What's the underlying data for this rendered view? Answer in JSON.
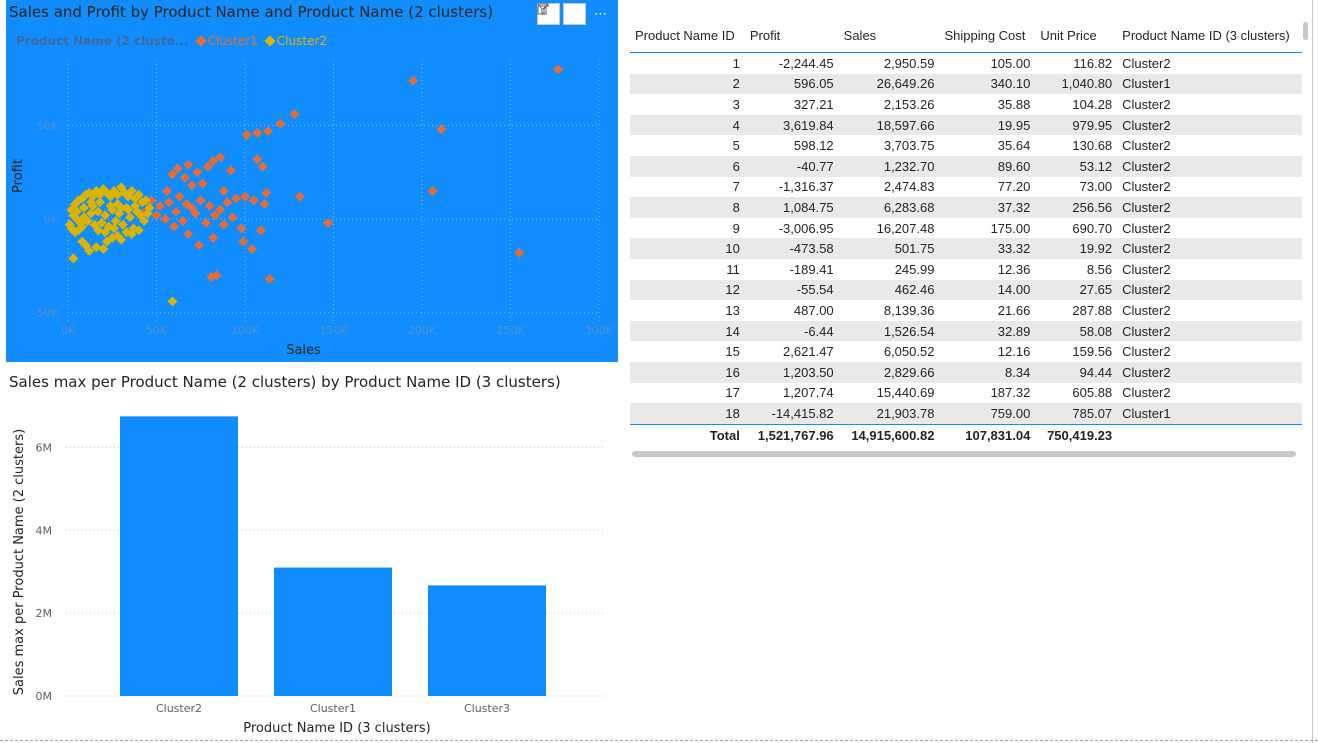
{
  "scatter": {
    "title": "Sales and Profit by Product Name and Product Name (2 clusters)",
    "legend_title": "Product Name (2 cluste...",
    "legend": [
      {
        "name": "Cluster1",
        "color": "#E66C37"
      },
      {
        "name": "Cluster2",
        "color": "#D9B300"
      }
    ],
    "background": "#118DFF",
    "icons": [
      "filter-icon",
      "focus-mode-icon",
      "more-options-icon"
    ]
  },
  "bar": {
    "title": "Sales max per Product Name (2 clusters) by Product Name ID (3 clusters)",
    "bar_color": "#118DFF"
  },
  "chart_data": [
    {
      "type": "scatter",
      "xlabel": "Sales",
      "ylabel": "Profit",
      "xlim": [
        0,
        300000
      ],
      "ylim": [
        -55000,
        85000
      ],
      "xticks": [
        0,
        50000,
        100000,
        150000,
        200000,
        250000,
        300000
      ],
      "xtick_labels": [
        "0K",
        "50K",
        "100K",
        "150K",
        "200K",
        "250K",
        "300K"
      ],
      "yticks": [
        -50000,
        0,
        50000
      ],
      "ytick_labels": [
        "-50K",
        "0K",
        "50K"
      ],
      "grid": true,
      "legend_position": "top-left",
      "series": [
        {
          "name": "Cluster1",
          "color": "#E66C37",
          "points": [
            [
              277000,
              80000
            ],
            [
              195000,
              74000
            ],
            [
              211000,
              48000
            ],
            [
              128000,
              56000
            ],
            [
              120000,
              51000
            ],
            [
              107000,
              46000
            ],
            [
              113000,
              47000
            ],
            [
              101000,
              45000
            ],
            [
              107000,
              32000
            ],
            [
              110000,
              28000
            ],
            [
              86000,
              33000
            ],
            [
              82000,
              31000
            ],
            [
              92000,
              26000
            ],
            [
              79000,
              28000
            ],
            [
              68000,
              29000
            ],
            [
              73000,
              25000
            ],
            [
              62000,
              27000
            ],
            [
              59000,
              24000
            ],
            [
              66000,
              22000
            ],
            [
              70000,
              18000
            ],
            [
              76000,
              19000
            ],
            [
              88000,
              15000
            ],
            [
              100000,
              12000
            ],
            [
              112000,
              14000
            ],
            [
              131000,
              12000
            ],
            [
              206000,
              15000
            ],
            [
              56000,
              15000
            ],
            [
              63000,
              12000
            ],
            [
              67000,
              8000
            ],
            [
              75000,
              10000
            ],
            [
              80000,
              7000
            ],
            [
              90000,
              9000
            ],
            [
              95000,
              11000
            ],
            [
              105000,
              10000
            ],
            [
              111000,
              8000
            ],
            [
              47000,
              10000
            ],
            [
              52000,
              7000
            ],
            [
              57000,
              9000
            ],
            [
              45000,
              5000
            ],
            [
              61000,
              4000
            ],
            [
              72000,
              3000
            ],
            [
              83000,
              2000
            ],
            [
              93000,
              1000
            ],
            [
              55000,
              0
            ],
            [
              65000,
              -1000
            ],
            [
              78000,
              -2000
            ],
            [
              88000,
              -3000
            ],
            [
              98000,
              -5000
            ],
            [
              109000,
              -6000
            ],
            [
              147000,
              -2000
            ],
            [
              68000,
              -8000
            ],
            [
              82000,
              -10000
            ],
            [
              99000,
              -12000
            ],
            [
              74000,
              -14000
            ],
            [
              104000,
              -16000
            ],
            [
              255000,
              -18000
            ],
            [
              84000,
              -30000
            ],
            [
              81000,
              -31000
            ],
            [
              114000,
              -32000
            ],
            [
              50000,
              2000
            ],
            [
              42000,
              3000
            ],
            [
              60000,
              -4000
            ],
            [
              70000,
              6000
            ],
            [
              86000,
              5000
            ]
          ]
        },
        {
          "name": "Cluster2",
          "color": "#D9B300",
          "points": [
            [
              59000,
              -44000
            ],
            [
              3000,
              -21000
            ],
            [
              8000,
              -12000
            ],
            [
              10000,
              -14000
            ],
            [
              12000,
              -17000
            ],
            [
              16000,
              -15000
            ],
            [
              20000,
              -16000
            ],
            [
              22000,
              -12000
            ],
            [
              25000,
              -10000
            ],
            [
              28000,
              -9000
            ],
            [
              30000,
              -11000
            ],
            [
              33000,
              -7000
            ],
            [
              36000,
              -8000
            ],
            [
              40000,
              -6000
            ],
            [
              2000,
              5000
            ],
            [
              4000,
              8000
            ],
            [
              6000,
              10000
            ],
            [
              8000,
              11000
            ],
            [
              10000,
              13000
            ],
            [
              12000,
              14000
            ],
            [
              14000,
              12000
            ],
            [
              16000,
              15000
            ],
            [
              18000,
              13000
            ],
            [
              20000,
              16000
            ],
            [
              22000,
              14000
            ],
            [
              24000,
              12000
            ],
            [
              26000,
              15000
            ],
            [
              28000,
              13000
            ],
            [
              30000,
              17000
            ],
            [
              32000,
              14000
            ],
            [
              34000,
              12000
            ],
            [
              36000,
              15000
            ],
            [
              38000,
              11000
            ],
            [
              40000,
              13000
            ],
            [
              42000,
              9000
            ],
            [
              44000,
              10000
            ],
            [
              46000,
              6000
            ],
            [
              3000,
              2000
            ],
            [
              5000,
              0
            ],
            [
              7000,
              -2000
            ],
            [
              9000,
              1000
            ],
            [
              11000,
              -1000
            ],
            [
              13000,
              3000
            ],
            [
              15000,
              -3000
            ],
            [
              17000,
              4000
            ],
            [
              19000,
              -2000
            ],
            [
              21000,
              2000
            ],
            [
              23000,
              -4000
            ],
            [
              25000,
              5000
            ],
            [
              27000,
              -1000
            ],
            [
              29000,
              3000
            ],
            [
              31000,
              -3000
            ],
            [
              33000,
              6000
            ],
            [
              35000,
              1000
            ],
            [
              37000,
              -5000
            ],
            [
              39000,
              4000
            ],
            [
              41000,
              2000
            ],
            [
              43000,
              -1000
            ],
            [
              45000,
              3000
            ],
            [
              1000,
              -3000
            ],
            [
              2000,
              -5000
            ],
            [
              4000,
              -7000
            ],
            [
              6000,
              -6000
            ],
            [
              8000,
              -4000
            ],
            [
              14000,
              7000
            ],
            [
              18000,
              9000
            ],
            [
              24000,
              7000
            ],
            [
              28000,
              8000
            ],
            [
              34000,
              5000
            ],
            [
              38000,
              7000
            ],
            [
              5000,
              4000
            ],
            [
              9000,
              6000
            ],
            [
              13000,
              9000
            ],
            [
              17000,
              -6000
            ],
            [
              21000,
              -7000
            ],
            [
              26000,
              -5000
            ],
            [
              30000,
              6000
            ]
          ]
        }
      ]
    },
    {
      "type": "bar",
      "xlabel": "Product Name ID (3 clusters)",
      "ylabel": "Sales max per Product Name (2 clusters)",
      "categories": [
        "Cluster2",
        "Cluster1",
        "Cluster3"
      ],
      "values": [
        6750000,
        3100000,
        2670000
      ],
      "ylim": [
        0,
        7000000
      ],
      "yticks": [
        0,
        2000000,
        4000000,
        6000000
      ],
      "ytick_labels": [
        "0M",
        "2M",
        "4M",
        "6M"
      ],
      "grid": true
    },
    {
      "type": "table",
      "columns": [
        "Product Name ID",
        "Profit",
        "Sales",
        "Shipping Cost",
        "Unit Price",
        "Product Name ID (3 clusters)"
      ],
      "rows": [
        [
          "1",
          "-2,244.45",
          "2,950.59",
          "105.00",
          "116.82",
          "Cluster2"
        ],
        [
          "2",
          "596.05",
          "26,649.26",
          "340.10",
          "1,040.80",
          "Cluster1"
        ],
        [
          "3",
          "327.21",
          "2,153.26",
          "35.88",
          "104.28",
          "Cluster2"
        ],
        [
          "4",
          "3,619.84",
          "18,597.66",
          "19.95",
          "979.95",
          "Cluster2"
        ],
        [
          "5",
          "598.12",
          "3,703.75",
          "35.64",
          "130.68",
          "Cluster2"
        ],
        [
          "6",
          "-40.77",
          "1,232.70",
          "89.60",
          "53.12",
          "Cluster2"
        ],
        [
          "7",
          "-1,316.37",
          "2,474.83",
          "77.20",
          "73.00",
          "Cluster2"
        ],
        [
          "8",
          "1,084.75",
          "6,283.68",
          "37.32",
          "256.56",
          "Cluster2"
        ],
        [
          "9",
          "-3,006.95",
          "16,207.48",
          "175.00",
          "690.70",
          "Cluster2"
        ],
        [
          "10",
          "-473.58",
          "501.75",
          "33.32",
          "19.92",
          "Cluster2"
        ],
        [
          "11",
          "-189.41",
          "245.99",
          "12.36",
          "8.56",
          "Cluster2"
        ],
        [
          "12",
          "-55.54",
          "462.46",
          "14.00",
          "27.65",
          "Cluster2"
        ],
        [
          "13",
          "487.00",
          "8,139.36",
          "21.66",
          "287.88",
          "Cluster2"
        ],
        [
          "14",
          "-6.44",
          "1,526.54",
          "32.89",
          "58.08",
          "Cluster2"
        ],
        [
          "15",
          "2,621.47",
          "6,050.52",
          "12.16",
          "159.56",
          "Cluster2"
        ],
        [
          "16",
          "1,203.50",
          "2,829.66",
          "8.34",
          "94.44",
          "Cluster2"
        ],
        [
          "17",
          "1,207.74",
          "15,440.69",
          "187.32",
          "605.88",
          "Cluster2"
        ],
        [
          "18",
          "-14,415.82",
          "21,903.78",
          "759.00",
          "785.07",
          "Cluster1"
        ]
      ],
      "total": [
        "Total",
        "1,521,767.96",
        "14,915,600.82",
        "107,831.04",
        "750,419.23",
        ""
      ]
    }
  ]
}
